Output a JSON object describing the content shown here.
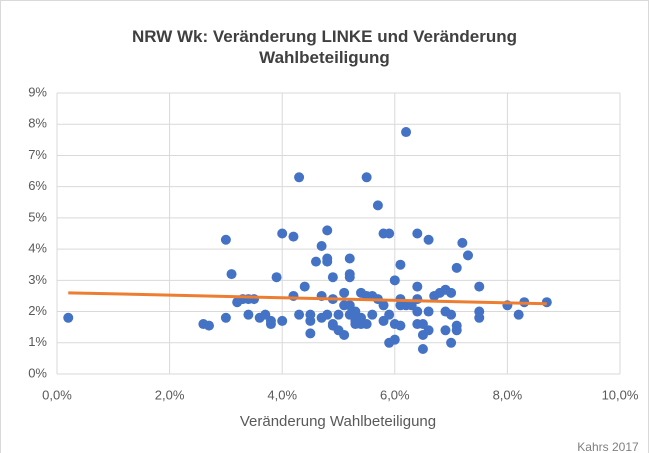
{
  "chart_data": {
    "type": "scatter",
    "title": "NRW Wk: Veränderung LINKE und Veränderung Wahlbeteiligung",
    "x_label": "Veränderung Wahlbeteiligung",
    "source": "Kahrs 2017",
    "color": "#4472c4",
    "grid": true,
    "x": [
      0.2,
      2.6,
      2.7,
      3.0,
      3.0,
      3.1,
      3.2,
      3.3,
      3.4,
      3.4,
      3.5,
      3.6,
      3.7,
      3.8,
      3.8,
      3.9,
      4.0,
      4.0,
      4.2,
      4.2,
      4.3,
      4.4,
      4.3,
      4.5,
      4.5,
      4.5,
      4.6,
      4.7,
      4.7,
      4.7,
      4.8,
      4.8,
      4.8,
      4.8,
      4.9,
      4.9,
      4.9,
      4.9,
      5.0,
      5.0,
      5.1,
      5.1,
      5.1,
      5.2,
      5.2,
      5.2,
      5.2,
      5.2,
      5.3,
      5.3,
      5.3,
      5.4,
      5.4,
      5.4,
      5.5,
      5.5,
      5.5,
      5.6,
      5.6,
      5.7,
      5.7,
      5.8,
      5.8,
      5.8,
      5.9,
      5.9,
      5.9,
      6.0,
      6.0,
      6.0,
      6.1,
      6.1,
      6.1,
      6.1,
      6.2,
      6.2,
      6.3,
      6.4,
      6.4,
      6.4,
      6.4,
      6.4,
      6.5,
      6.5,
      6.5,
      6.6,
      6.6,
      6.6,
      6.7,
      6.8,
      6.9,
      6.9,
      6.9,
      7.0,
      7.0,
      7.0,
      7.1,
      7.1,
      7.1,
      7.2,
      7.3,
      7.5,
      7.5,
      7.5,
      8.0,
      8.2,
      8.3,
      8.7
    ],
    "values": [
      1.8,
      1.6,
      1.55,
      4.3,
      1.8,
      3.2,
      2.3,
      2.4,
      1.9,
      2.4,
      2.4,
      1.8,
      1.9,
      1.7,
      1.6,
      3.1,
      4.5,
      1.7,
      4.4,
      2.5,
      6.3,
      2.8,
      1.9,
      1.7,
      1.3,
      1.9,
      3.6,
      4.1,
      2.5,
      1.8,
      4.6,
      3.7,
      3.6,
      1.9,
      3.1,
      2.4,
      1.6,
      1.55,
      1.9,
      1.4,
      2.6,
      2.2,
      1.25,
      3.7,
      3.2,
      3.1,
      2.2,
      1.9,
      1.6,
      2.0,
      1.7,
      2.6,
      1.8,
      1.6,
      6.3,
      2.5,
      1.6,
      2.5,
      1.9,
      5.4,
      2.4,
      4.5,
      1.7,
      2.2,
      4.5,
      1.0,
      1.9,
      3.0,
      1.6,
      1.1,
      3.5,
      2.4,
      1.55,
      2.2,
      7.75,
      2.2,
      2.2,
      4.5,
      2.8,
      2.4,
      1.6,
      2.0,
      0.8,
      1.6,
      1.25,
      4.3,
      2.0,
      1.4,
      2.5,
      2.6,
      2.7,
      2.0,
      1.4,
      2.6,
      1.9,
      1.0,
      3.4,
      1.55,
      1.4,
      4.2,
      3.8,
      2.8,
      2.0,
      1.8,
      2.2,
      1.9,
      2.3,
      2.3
    ],
    "trendline": {
      "x": [
        0.2,
        8.7
      ],
      "values": [
        2.6,
        2.25
      ],
      "color": "#ed7d31"
    },
    "xlim": [
      0,
      10
    ],
    "xticks": [
      {
        "value": 0,
        "label": "0,0%"
      },
      {
        "value": 2,
        "label": "2,0%"
      },
      {
        "value": 4,
        "label": "4,0%"
      },
      {
        "value": 6,
        "label": "6,0%"
      },
      {
        "value": 8,
        "label": "8,0%"
      },
      {
        "value": 10,
        "label": "10,0%"
      }
    ],
    "ylim": [
      0,
      9
    ],
    "yticks": [
      {
        "value": 0,
        "label": "0%"
      },
      {
        "value": 1,
        "label": "1%"
      },
      {
        "value": 2,
        "label": "2%"
      },
      {
        "value": 3,
        "label": "3%"
      },
      {
        "value": 4,
        "label": "4%"
      },
      {
        "value": 5,
        "label": "5%"
      },
      {
        "value": 6,
        "label": "6%"
      },
      {
        "value": 7,
        "label": "7%"
      },
      {
        "value": 8,
        "label": "8%"
      },
      {
        "value": 9,
        "label": "9%"
      }
    ]
  }
}
